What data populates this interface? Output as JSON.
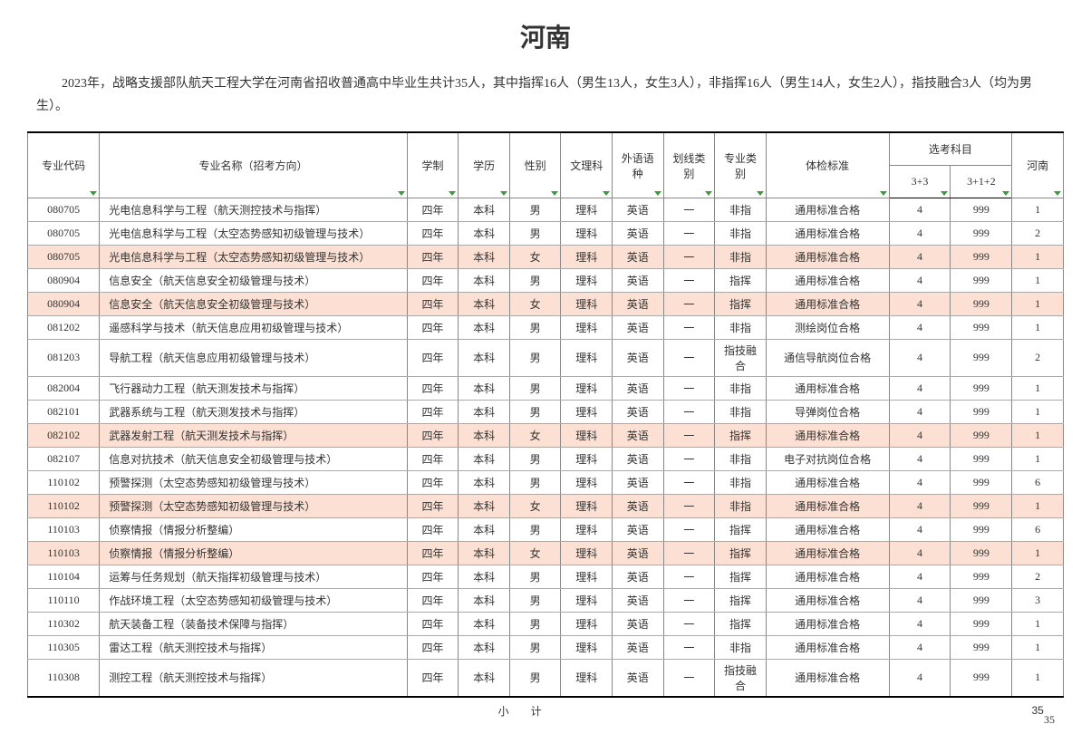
{
  "title": "河南",
  "intro": "2023年，战略支援部队航天工程大学在河南省招收普通高中毕业生共计35人，其中指挥16人（男生13人，女生3人），非指挥16人（男生14人，女生2人），指技融合3人（均为男生）。",
  "columns": {
    "code": "专业代码",
    "name": "专业名称（招考方向）",
    "system": "学制",
    "degree": "学历",
    "gender": "性别",
    "sci": "文理科",
    "lang": "外语语种",
    "line": "划线类别",
    "spec": "专业类别",
    "physical": "体检标准",
    "subjects": "选考科目",
    "sub33": "3+3",
    "sub312": "3+1+2",
    "henan": "河南"
  },
  "rows": [
    {
      "code": "080705",
      "name": "光电信息科学与工程（航天测控技术与指挥）",
      "sys": "四年",
      "deg": "本科",
      "g": "男",
      "sci": "理科",
      "lang": "英语",
      "line": "一",
      "spec": "非指",
      "phy": "通用标准合格",
      "s33": "4",
      "s312": "999",
      "hn": "1",
      "hl": false
    },
    {
      "code": "080705",
      "name": "光电信息科学与工程（太空态势感知初级管理与技术）",
      "sys": "四年",
      "deg": "本科",
      "g": "男",
      "sci": "理科",
      "lang": "英语",
      "line": "一",
      "spec": "非指",
      "phy": "通用标准合格",
      "s33": "4",
      "s312": "999",
      "hn": "2",
      "hl": false
    },
    {
      "code": "080705",
      "name": "光电信息科学与工程（太空态势感知初级管理与技术）",
      "sys": "四年",
      "deg": "本科",
      "g": "女",
      "sci": "理科",
      "lang": "英语",
      "line": "一",
      "spec": "非指",
      "phy": "通用标准合格",
      "s33": "4",
      "s312": "999",
      "hn": "1",
      "hl": true
    },
    {
      "code": "080904",
      "name": "信息安全（航天信息安全初级管理与技术）",
      "sys": "四年",
      "deg": "本科",
      "g": "男",
      "sci": "理科",
      "lang": "英语",
      "line": "一",
      "spec": "指挥",
      "phy": "通用标准合格",
      "s33": "4",
      "s312": "999",
      "hn": "1",
      "hl": false
    },
    {
      "code": "080904",
      "name": "信息安全（航天信息安全初级管理与技术）",
      "sys": "四年",
      "deg": "本科",
      "g": "女",
      "sci": "理科",
      "lang": "英语",
      "line": "一",
      "spec": "指挥",
      "phy": "通用标准合格",
      "s33": "4",
      "s312": "999",
      "hn": "1",
      "hl": true
    },
    {
      "code": "081202",
      "name": "遥感科学与技术（航天信息应用初级管理与技术）",
      "sys": "四年",
      "deg": "本科",
      "g": "男",
      "sci": "理科",
      "lang": "英语",
      "line": "一",
      "spec": "非指",
      "phy": "测绘岗位合格",
      "s33": "4",
      "s312": "999",
      "hn": "1",
      "hl": false
    },
    {
      "code": "081203",
      "name": "导航工程（航天信息应用初级管理与技术）",
      "sys": "四年",
      "deg": "本科",
      "g": "男",
      "sci": "理科",
      "lang": "英语",
      "line": "一",
      "spec": "指技融合",
      "phy": "通信导航岗位合格",
      "s33": "4",
      "s312": "999",
      "hn": "2",
      "hl": false
    },
    {
      "code": "082004",
      "name": "飞行器动力工程（航天测发技术与指挥）",
      "sys": "四年",
      "deg": "本科",
      "g": "男",
      "sci": "理科",
      "lang": "英语",
      "line": "一",
      "spec": "非指",
      "phy": "通用标准合格",
      "s33": "4",
      "s312": "999",
      "hn": "1",
      "hl": false
    },
    {
      "code": "082101",
      "name": "武器系统与工程（航天测发技术与指挥）",
      "sys": "四年",
      "deg": "本科",
      "g": "男",
      "sci": "理科",
      "lang": "英语",
      "line": "一",
      "spec": "非指",
      "phy": "导弹岗位合格",
      "s33": "4",
      "s312": "999",
      "hn": "1",
      "hl": false
    },
    {
      "code": "082102",
      "name": "武器发射工程（航天测发技术与指挥）",
      "sys": "四年",
      "deg": "本科",
      "g": "女",
      "sci": "理科",
      "lang": "英语",
      "line": "一",
      "spec": "指挥",
      "phy": "通用标准合格",
      "s33": "4",
      "s312": "999",
      "hn": "1",
      "hl": true
    },
    {
      "code": "082107",
      "name": "信息对抗技术（航天信息安全初级管理与技术）",
      "sys": "四年",
      "deg": "本科",
      "g": "男",
      "sci": "理科",
      "lang": "英语",
      "line": "一",
      "spec": "非指",
      "phy": "电子对抗岗位合格",
      "s33": "4",
      "s312": "999",
      "hn": "1",
      "hl": false
    },
    {
      "code": "110102",
      "name": "预警探测（太空态势感知初级管理与技术）",
      "sys": "四年",
      "deg": "本科",
      "g": "男",
      "sci": "理科",
      "lang": "英语",
      "line": "一",
      "spec": "非指",
      "phy": "通用标准合格",
      "s33": "4",
      "s312": "999",
      "hn": "6",
      "hl": false
    },
    {
      "code": "110102",
      "name": "预警探测（太空态势感知初级管理与技术）",
      "sys": "四年",
      "deg": "本科",
      "g": "女",
      "sci": "理科",
      "lang": "英语",
      "line": "一",
      "spec": "非指",
      "phy": "通用标准合格",
      "s33": "4",
      "s312": "999",
      "hn": "1",
      "hl": true
    },
    {
      "code": "110103",
      "name": "侦察情报（情报分析整编）",
      "sys": "四年",
      "deg": "本科",
      "g": "男",
      "sci": "理科",
      "lang": "英语",
      "line": "一",
      "spec": "指挥",
      "phy": "通用标准合格",
      "s33": "4",
      "s312": "999",
      "hn": "6",
      "hl": false
    },
    {
      "code": "110103",
      "name": "侦察情报（情报分析整编）",
      "sys": "四年",
      "deg": "本科",
      "g": "女",
      "sci": "理科",
      "lang": "英语",
      "line": "一",
      "spec": "指挥",
      "phy": "通用标准合格",
      "s33": "4",
      "s312": "999",
      "hn": "1",
      "hl": true
    },
    {
      "code": "110104",
      "name": "运筹与任务规划（航天指挥初级管理与技术）",
      "sys": "四年",
      "deg": "本科",
      "g": "男",
      "sci": "理科",
      "lang": "英语",
      "line": "一",
      "spec": "指挥",
      "phy": "通用标准合格",
      "s33": "4",
      "s312": "999",
      "hn": "2",
      "hl": false
    },
    {
      "code": "110110",
      "name": "作战环境工程（太空态势感知初级管理与技术）",
      "sys": "四年",
      "deg": "本科",
      "g": "男",
      "sci": "理科",
      "lang": "英语",
      "line": "一",
      "spec": "指挥",
      "phy": "通用标准合格",
      "s33": "4",
      "s312": "999",
      "hn": "3",
      "hl": false
    },
    {
      "code": "110302",
      "name": "航天装备工程（装备技术保障与指挥）",
      "sys": "四年",
      "deg": "本科",
      "g": "男",
      "sci": "理科",
      "lang": "英语",
      "line": "一",
      "spec": "指挥",
      "phy": "通用标准合格",
      "s33": "4",
      "s312": "999",
      "hn": "1",
      "hl": false
    },
    {
      "code": "110305",
      "name": "雷达工程（航天测控技术与指挥）",
      "sys": "四年",
      "deg": "本科",
      "g": "男",
      "sci": "理科",
      "lang": "英语",
      "line": "一",
      "spec": "非指",
      "phy": "通用标准合格",
      "s33": "4",
      "s312": "999",
      "hn": "1",
      "hl": false
    },
    {
      "code": "110308",
      "name": "测控工程（航天测控技术与指挥）",
      "sys": "四年",
      "deg": "本科",
      "g": "男",
      "sci": "理科",
      "lang": "英语",
      "line": "一",
      "spec": "指技融合",
      "phy": "通用标准合格",
      "s33": "4",
      "s312": "999",
      "hn": "1",
      "hl": false
    }
  ],
  "subtotal_label": "小　　计",
  "subtotal_value": "35",
  "page_number": "35",
  "colors": {
    "highlight_bg": "#fbe0d3",
    "filter_icon": "#3a9d3a",
    "border": "#888888",
    "border_strong": "#000000",
    "text": "#333333"
  },
  "table_type": "table"
}
